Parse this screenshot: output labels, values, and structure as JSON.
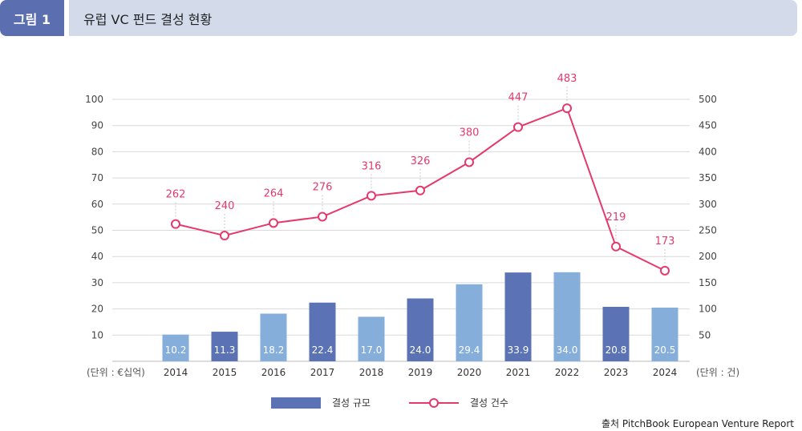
{
  "header": {
    "figure_label": "그림 1",
    "title": "유럽 VC 펀드 결성 현황"
  },
  "chart_data": {
    "type": "bar",
    "title": "유럽 VC 펀드 결성 현황",
    "categories": [
      "2014",
      "2015",
      "2016",
      "2017",
      "2018",
      "2019",
      "2020",
      "2021",
      "2022",
      "2023",
      "2024"
    ],
    "series": [
      {
        "name": "결성 규모",
        "type": "bar",
        "axis": "left",
        "values": [
          10.2,
          11.3,
          18.2,
          22.4,
          17.0,
          24.0,
          29.4,
          33.9,
          34.0,
          20.8,
          20.5
        ],
        "labels": [
          "10.2",
          "11.3",
          "18.2",
          "22.4",
          "17.0",
          "24.0",
          "29.4",
          "33.9",
          "34.0",
          "20.8",
          "20.5"
        ],
        "bar_colors": [
          "#86aedb",
          "#5b73b5",
          "#86aedb",
          "#5b73b5",
          "#86aedb",
          "#5b73b5",
          "#86aedb",
          "#5b73b5",
          "#86aedb",
          "#5b73b5",
          "#86aedb"
        ]
      },
      {
        "name": "결성 건수",
        "type": "line",
        "axis": "right",
        "values": [
          262,
          240,
          264,
          276,
          316,
          326,
          380,
          447,
          483,
          219,
          173
        ],
        "color": "#e5396b"
      }
    ],
    "y_left": {
      "min": 0,
      "max": 100,
      "ticks": [
        10,
        20,
        30,
        40,
        50,
        60,
        70,
        80,
        90,
        100
      ],
      "unit_label": "(단위 : €십억)"
    },
    "y_right": {
      "min": 0,
      "max": 500,
      "ticks": [
        50,
        100,
        150,
        200,
        250,
        300,
        350,
        400,
        450,
        500
      ],
      "unit_label": "(단위 : 건)"
    },
    "grid": true,
    "legend_position": "bottom-center"
  },
  "legend": {
    "bar_label": "결성 규모",
    "line_label": "결성 건수"
  },
  "source": "출처 PitchBook European Venture Report",
  "colors": {
    "bar_light": "#86aedb",
    "bar_dark": "#5b73b5",
    "line": "#e5396b",
    "grid": "#d9d9d9"
  }
}
